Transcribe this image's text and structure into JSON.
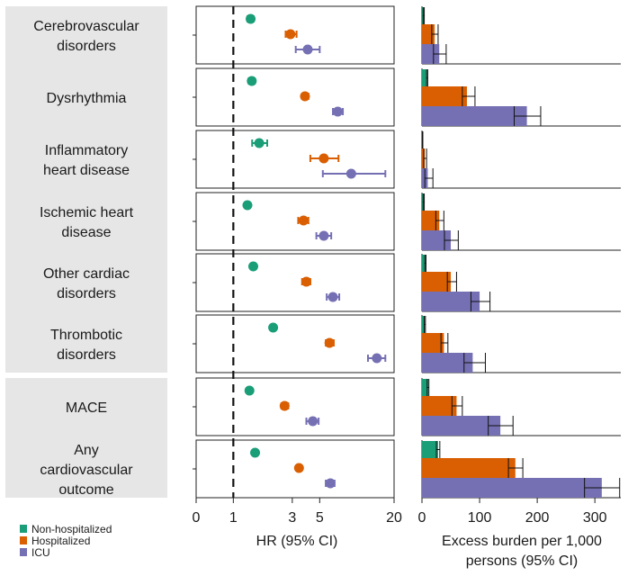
{
  "chart_data": [
    {
      "type": "forest",
      "xlabel": "HR (95% CI)",
      "x_scale": "log",
      "reference_line": 1,
      "xlim": [
        0.5,
        20
      ],
      "xticks": [
        {
          "value": 0.5,
          "label": "0"
        },
        {
          "value": 1,
          "label": "1"
        },
        {
          "value": 3,
          "label": "3"
        },
        {
          "value": 5,
          "label": "5"
        },
        {
          "value": 20,
          "label": "20"
        }
      ],
      "categories": [
        "Cerebrovascular\ndisorders",
        "Dysrhythmia",
        "Inflammatory\nheart disease",
        "Ischemic heart\ndisease",
        "Other cardiac\ndisorders",
        "Thrombotic\ndisorders",
        "MACE",
        "Any\ncardiovascular\noutcome"
      ],
      "series": [
        {
          "name": "Non-hospitalized",
          "values": [
            1.38,
            1.41,
            1.62,
            1.3,
            1.45,
            2.1,
            1.35,
            1.5
          ],
          "ci_low": [
            1.3,
            1.33,
            1.42,
            1.24,
            1.38,
            2.0,
            1.29,
            1.44
          ],
          "ci_high": [
            1.46,
            1.49,
            1.88,
            1.36,
            1.52,
            2.2,
            1.41,
            1.56
          ]
        },
        {
          "name": "Hospitalized",
          "values": [
            2.9,
            3.8,
            5.4,
            3.7,
            3.9,
            6.0,
            2.6,
            3.4
          ],
          "ci_low": [
            2.65,
            3.6,
            4.2,
            3.35,
            3.6,
            5.6,
            2.45,
            3.25
          ],
          "ci_high": [
            3.25,
            4.05,
            7.1,
            4.05,
            4.2,
            6.5,
            2.78,
            3.55
          ]
        },
        {
          "name": "ICU",
          "values": [
            4.0,
            7.0,
            9.0,
            5.4,
            6.4,
            14.5,
            4.4,
            6.1
          ],
          "ci_low": [
            3.2,
            6.4,
            5.3,
            4.7,
            5.7,
            12.3,
            3.9,
            5.6
          ],
          "ci_high": [
            5.0,
            7.7,
            17.0,
            6.2,
            7.2,
            17.0,
            4.9,
            6.6
          ]
        }
      ]
    },
    {
      "type": "bar",
      "orientation": "horizontal",
      "xlabel": "Excess burden per 1,000\npersons (95% CI)",
      "xlim": [
        0,
        345
      ],
      "xticks": [
        0,
        100,
        200,
        300
      ],
      "categories": [
        "Cerebrovascular\ndisorders",
        "Dysrhythmia",
        "Inflammatory\nheart disease",
        "Ischemic heart\ndisease",
        "Other cardiac\ndisorders",
        "Thrombotic\ndisorders",
        "MACE",
        "Any\ncardiovascular\noutcome"
      ],
      "series": [
        {
          "name": "Non-hospitalized",
          "values": [
            3,
            9,
            1,
            3,
            6,
            5,
            11,
            28
          ],
          "ci_low": [
            2,
            8,
            0.5,
            2,
            5,
            4,
            9,
            25
          ],
          "ci_high": [
            4,
            10,
            1.5,
            4,
            7,
            6,
            12,
            31
          ]
        },
        {
          "name": "Hospitalized",
          "values": [
            22,
            78,
            5,
            30,
            50,
            38,
            60,
            162
          ],
          "ci_low": [
            17,
            70,
            3,
            24,
            44,
            33,
            52,
            150
          ],
          "ci_high": [
            28,
            92,
            8,
            38,
            60,
            45,
            70,
            175
          ]
        },
        {
          "name": "ICU",
          "values": [
            30,
            182,
            10,
            50,
            100,
            88,
            136,
            312
          ],
          "ci_low": [
            20,
            160,
            5,
            39,
            85,
            73,
            115,
            282
          ],
          "ci_high": [
            42,
            206,
            19,
            63,
            118,
            110,
            158,
            343
          ]
        }
      ]
    }
  ],
  "legend": [
    {
      "name": "Non-hospitalized",
      "color": "#1a9e77"
    },
    {
      "name": "Hospitalized",
      "color": "#d95f02"
    },
    {
      "name": "ICU",
      "color": "#7570b3"
    }
  ],
  "colors": {
    "non_hospitalized": "#1a9e77",
    "hospitalized": "#d95f02",
    "icu": "#7570b3",
    "panel_bg": "#e6e6e6"
  }
}
